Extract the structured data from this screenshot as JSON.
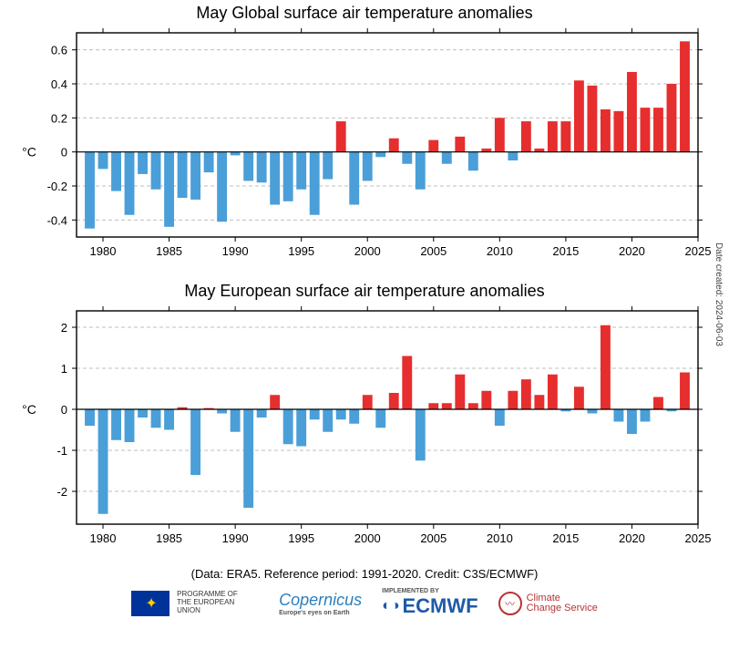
{
  "global_chart": {
    "title": "May Global surface air temperature anomalies",
    "ylabel": "°C",
    "ylim": [
      -0.5,
      0.7
    ],
    "ytick_start": -0.4,
    "ytick_step": 0.2,
    "xlim": [
      1978,
      2025
    ],
    "xtick_start": 1980,
    "xtick_step": 5,
    "bar_width": 0.75,
    "pos_color": "#e62e2e",
    "neg_color": "#4a9fd8",
    "grid_color": "#bfbfbf",
    "background_color": "#ffffff",
    "title_fontsize": 18,
    "label_fontsize": 14,
    "tick_fontsize": 13,
    "data": [
      {
        "y": 1979,
        "v": -0.45
      },
      {
        "y": 1980,
        "v": -0.1
      },
      {
        "y": 1981,
        "v": -0.23
      },
      {
        "y": 1982,
        "v": -0.37
      },
      {
        "y": 1983,
        "v": -0.13
      },
      {
        "y": 1984,
        "v": -0.22
      },
      {
        "y": 1985,
        "v": -0.44
      },
      {
        "y": 1986,
        "v": -0.27
      },
      {
        "y": 1987,
        "v": -0.28
      },
      {
        "y": 1988,
        "v": -0.12
      },
      {
        "y": 1989,
        "v": -0.41
      },
      {
        "y": 1990,
        "v": -0.02
      },
      {
        "y": 1991,
        "v": -0.17
      },
      {
        "y": 1992,
        "v": -0.18
      },
      {
        "y": 1993,
        "v": -0.31
      },
      {
        "y": 1994,
        "v": -0.29
      },
      {
        "y": 1995,
        "v": -0.22
      },
      {
        "y": 1996,
        "v": -0.37
      },
      {
        "y": 1997,
        "v": -0.16
      },
      {
        "y": 1998,
        "v": 0.18
      },
      {
        "y": 1999,
        "v": -0.31
      },
      {
        "y": 2000,
        "v": -0.17
      },
      {
        "y": 2001,
        "v": -0.03
      },
      {
        "y": 2002,
        "v": 0.08
      },
      {
        "y": 2003,
        "v": -0.07
      },
      {
        "y": 2004,
        "v": -0.22
      },
      {
        "y": 2005,
        "v": 0.07
      },
      {
        "y": 2006,
        "v": -0.07
      },
      {
        "y": 2007,
        "v": 0.09
      },
      {
        "y": 2008,
        "v": -0.11
      },
      {
        "y": 2009,
        "v": 0.02
      },
      {
        "y": 2010,
        "v": 0.2
      },
      {
        "y": 2011,
        "v": -0.05
      },
      {
        "y": 2012,
        "v": 0.18
      },
      {
        "y": 2013,
        "v": 0.02
      },
      {
        "y": 2014,
        "v": 0.18
      },
      {
        "y": 2015,
        "v": 0.18
      },
      {
        "y": 2016,
        "v": 0.42
      },
      {
        "y": 2017,
        "v": 0.39
      },
      {
        "y": 2018,
        "v": 0.25
      },
      {
        "y": 2019,
        "v": 0.24
      },
      {
        "y": 2020,
        "v": 0.47
      },
      {
        "y": 2021,
        "v": 0.26
      },
      {
        "y": 2022,
        "v": 0.26
      },
      {
        "y": 2023,
        "v": 0.4
      },
      {
        "y": 2024,
        "v": 0.65
      }
    ]
  },
  "europe_chart": {
    "title": "May European surface air temperature anomalies",
    "ylabel": "°C",
    "ylim": [
      -2.8,
      2.4
    ],
    "ytick_start": -2,
    "ytick_step": 1,
    "xlim": [
      1978,
      2025
    ],
    "xtick_start": 1980,
    "xtick_step": 5,
    "bar_width": 0.75,
    "pos_color": "#e62e2e",
    "neg_color": "#4a9fd8",
    "grid_color": "#bfbfbf",
    "background_color": "#ffffff",
    "title_fontsize": 18,
    "label_fontsize": 14,
    "tick_fontsize": 13,
    "data": [
      {
        "y": 1979,
        "v": -0.4
      },
      {
        "y": 1980,
        "v": -2.55
      },
      {
        "y": 1981,
        "v": -0.75
      },
      {
        "y": 1982,
        "v": -0.8
      },
      {
        "y": 1983,
        "v": -0.2
      },
      {
        "y": 1984,
        "v": -0.45
      },
      {
        "y": 1985,
        "v": -0.5
      },
      {
        "y": 1986,
        "v": 0.05
      },
      {
        "y": 1987,
        "v": -1.6
      },
      {
        "y": 1988,
        "v": 0.03
      },
      {
        "y": 1989,
        "v": -0.1
      },
      {
        "y": 1990,
        "v": -0.55
      },
      {
        "y": 1991,
        "v": -2.4
      },
      {
        "y": 1992,
        "v": -0.2
      },
      {
        "y": 1993,
        "v": 0.35
      },
      {
        "y": 1994,
        "v": -0.85
      },
      {
        "y": 1995,
        "v": -0.9
      },
      {
        "y": 1996,
        "v": -0.25
      },
      {
        "y": 1997,
        "v": -0.55
      },
      {
        "y": 1998,
        "v": -0.25
      },
      {
        "y": 1999,
        "v": -0.35
      },
      {
        "y": 2000,
        "v": 0.35
      },
      {
        "y": 2001,
        "v": -0.45
      },
      {
        "y": 2002,
        "v": 0.4
      },
      {
        "y": 2003,
        "v": 1.3
      },
      {
        "y": 2004,
        "v": -1.25
      },
      {
        "y": 2005,
        "v": 0.15
      },
      {
        "y": 2006,
        "v": 0.15
      },
      {
        "y": 2007,
        "v": 0.85
      },
      {
        "y": 2008,
        "v": 0.15
      },
      {
        "y": 2009,
        "v": 0.45
      },
      {
        "y": 2010,
        "v": -0.4
      },
      {
        "y": 2011,
        "v": 0.45
      },
      {
        "y": 2012,
        "v": 0.73
      },
      {
        "y": 2013,
        "v": 0.35
      },
      {
        "y": 2014,
        "v": 0.85
      },
      {
        "y": 2015,
        "v": -0.05
      },
      {
        "y": 2016,
        "v": 0.55
      },
      {
        "y": 2017,
        "v": -0.1
      },
      {
        "y": 2018,
        "v": 2.05
      },
      {
        "y": 2019,
        "v": -0.3
      },
      {
        "y": 2020,
        "v": -0.6
      },
      {
        "y": 2021,
        "v": -0.3
      },
      {
        "y": 2022,
        "v": 0.3
      },
      {
        "y": 2023,
        "v": -0.05
      },
      {
        "y": 2024,
        "v": 0.9
      }
    ]
  },
  "caption": "(Data: ERA5.  Reference period: 1991-2020.  Credit: C3S/ECMWF)",
  "date_created": "Date created: 2024-06-03",
  "footer": {
    "eu_text": "Programme of\nthe European Union",
    "copernicus": "Copernicus",
    "copernicus_sub": "Europe's eyes on Earth",
    "ecmwf_pre": "IMPLEMENTED BY",
    "ecmwf": "ECMWF",
    "ccs": "Climate\nChange Service"
  }
}
